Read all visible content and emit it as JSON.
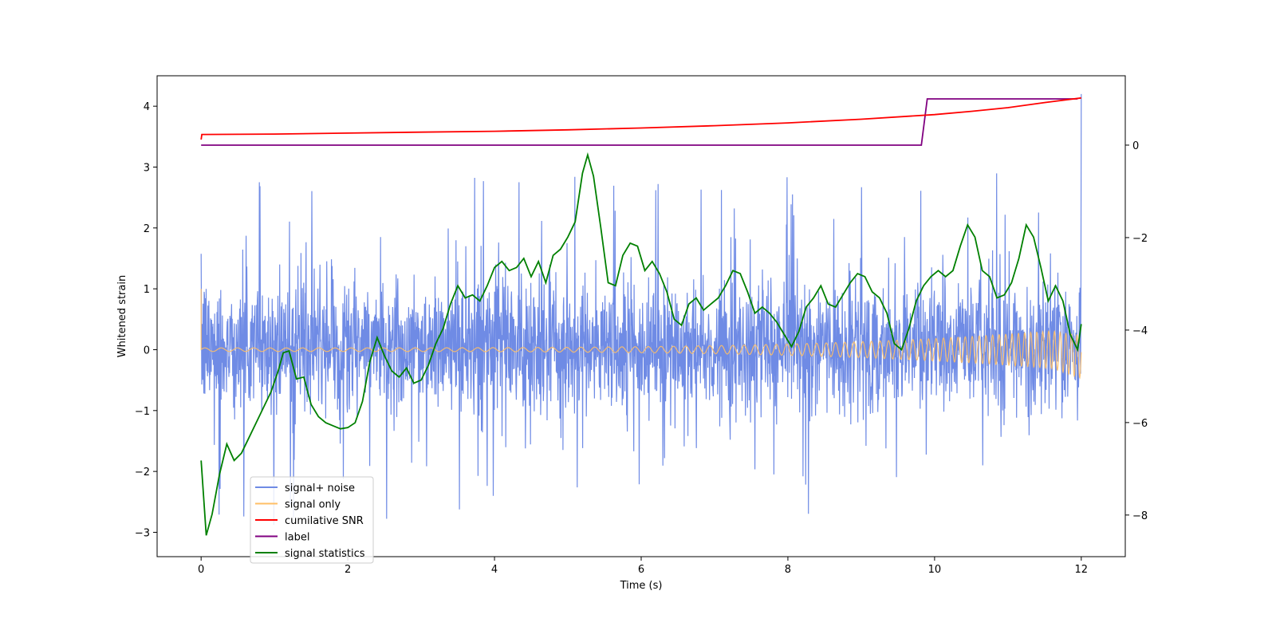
{
  "chart_data": {
    "type": "line",
    "xlabel": "Time (s)",
    "ylabel": "Whitened strain",
    "y2label": "",
    "xlim": [
      -0.6,
      12.6
    ],
    "ylim": [
      -3.4,
      4.5
    ],
    "y2lim": [
      -8.9,
      1.5
    ],
    "xticks": [
      0,
      2,
      4,
      6,
      8,
      10,
      12
    ],
    "yticks": [
      -3,
      -2,
      -1,
      0,
      1,
      2,
      3,
      4
    ],
    "y2ticks": [
      -8,
      -6,
      -4,
      -2,
      0
    ],
    "tick_labels": {
      "x": [
        "0",
        "2",
        "4",
        "6",
        "8",
        "10",
        "12"
      ],
      "y": [
        "−3",
        "−2",
        "−1",
        "0",
        "1",
        "2",
        "3",
        "4"
      ],
      "y2": [
        "−8",
        "−6",
        "−4",
        "−2",
        "0"
      ]
    },
    "grid": false,
    "legend_position": "lower-left",
    "series": [
      {
        "name": "signal+ noise",
        "color": "#6f8be5",
        "axis": "left",
        "style": "dense noise, roughly -3.0 to 3.1, final spike to 4.2 at t=12",
        "envelope": {
          "typical_low": -1.0,
          "typical_high": 1.2,
          "min": -3.0,
          "max": 3.1,
          "end_spike": 4.2
        }
      },
      {
        "name": "signal only",
        "color": "#ffbf66",
        "axis": "left",
        "style": "chirp oscillation growing toward t=12",
        "amplitude": {
          "start": 0.03,
          "end": 0.35
        },
        "initial_spike": 1.0
      },
      {
        "name": "cumilative SNR",
        "color": "#ff0000",
        "axis": "right",
        "x": [
          0,
          0.01,
          1,
          2,
          3,
          4,
          5,
          6,
          7,
          8,
          9,
          10,
          10.5,
          11,
          11.5,
          12
        ],
        "y": [
          0.12,
          0.23,
          0.24,
          0.26,
          0.28,
          0.3,
          0.33,
          0.37,
          0.42,
          0.48,
          0.56,
          0.66,
          0.73,
          0.81,
          0.92,
          1.02
        ]
      },
      {
        "name": "label",
        "color": "#800080",
        "axis": "right",
        "x": [
          0,
          9.82,
          9.9,
          11.95
        ],
        "y": [
          0,
          0,
          1,
          1
        ]
      },
      {
        "name": "signal statistics",
        "color": "#008000",
        "axis": "left",
        "x": [
          0,
          0.07,
          0.15,
          0.25,
          0.35,
          0.45,
          0.55,
          0.65,
          0.75,
          0.85,
          0.95,
          1.05,
          1.12,
          1.2,
          1.3,
          1.4,
          1.5,
          1.6,
          1.7,
          1.8,
          1.9,
          2.0,
          2.1,
          2.2,
          2.3,
          2.4,
          2.5,
          2.6,
          2.7,
          2.8,
          2.9,
          3.0,
          3.1,
          3.2,
          3.3,
          3.4,
          3.5,
          3.6,
          3.7,
          3.8,
          3.9,
          4.0,
          4.1,
          4.2,
          4.3,
          4.4,
          4.5,
          4.6,
          4.7,
          4.8,
          4.9,
          5.0,
          5.1,
          5.2,
          5.27,
          5.35,
          5.45,
          5.55,
          5.65,
          5.75,
          5.85,
          5.95,
          6.05,
          6.15,
          6.25,
          6.35,
          6.45,
          6.55,
          6.65,
          6.75,
          6.85,
          6.95,
          7.05,
          7.15,
          7.25,
          7.35,
          7.45,
          7.55,
          7.65,
          7.75,
          7.85,
          7.95,
          8.05,
          8.15,
          8.25,
          8.35,
          8.45,
          8.55,
          8.65,
          8.75,
          8.85,
          8.95,
          9.05,
          9.15,
          9.25,
          9.35,
          9.45,
          9.55,
          9.65,
          9.75,
          9.85,
          9.95,
          10.05,
          10.15,
          10.25,
          10.35,
          10.45,
          10.55,
          10.65,
          10.75,
          10.85,
          10.95,
          11.05,
          11.15,
          11.25,
          11.35,
          11.45,
          11.55,
          11.65,
          11.75,
          11.85,
          11.95,
          12.0
        ],
        "y": [
          -1.82,
          -3.05,
          -2.7,
          -2.05,
          -1.55,
          -1.82,
          -1.7,
          -1.45,
          -1.2,
          -0.95,
          -0.7,
          -0.35,
          -0.05,
          -0.02,
          -0.48,
          -0.45,
          -0.9,
          -1.1,
          -1.2,
          -1.25,
          -1.3,
          -1.28,
          -1.2,
          -0.85,
          -0.2,
          0.2,
          -0.1,
          -0.35,
          -0.45,
          -0.3,
          -0.55,
          -0.5,
          -0.25,
          0.1,
          0.35,
          0.75,
          1.05,
          0.85,
          0.9,
          0.8,
          1.05,
          1.35,
          1.45,
          1.3,
          1.35,
          1.5,
          1.2,
          1.45,
          1.1,
          1.55,
          1.65,
          1.85,
          2.1,
          2.9,
          3.2,
          2.85,
          2.0,
          1.1,
          1.05,
          1.55,
          1.75,
          1.7,
          1.3,
          1.45,
          1.25,
          0.95,
          0.5,
          0.4,
          0.75,
          0.85,
          0.65,
          0.75,
          0.85,
          1.05,
          1.3,
          1.25,
          0.95,
          0.6,
          0.7,
          0.6,
          0.45,
          0.25,
          0.05,
          0.3,
          0.7,
          0.85,
          1.05,
          0.75,
          0.7,
          0.9,
          1.1,
          1.25,
          1.2,
          0.95,
          0.85,
          0.6,
          0.1,
          0.0,
          0.35,
          0.8,
          1.05,
          1.2,
          1.3,
          1.2,
          1.3,
          1.7,
          2.05,
          1.85,
          1.3,
          1.2,
          0.85,
          0.9,
          1.1,
          1.5,
          2.05,
          1.85,
          1.35,
          0.8,
          1.05,
          0.8,
          0.25,
          0.0,
          0.42
        ]
      }
    ]
  }
}
